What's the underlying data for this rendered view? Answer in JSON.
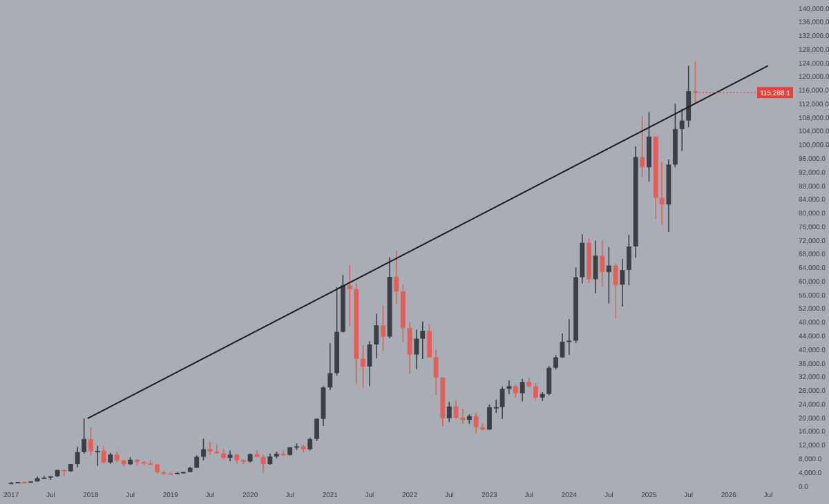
{
  "chart_data": {
    "type": "candlestick",
    "x": [
      "2017-01",
      "2017-02",
      "2017-03",
      "2017-04",
      "2017-05",
      "2017-06",
      "2017-07",
      "2017-08",
      "2017-09",
      "2017-10",
      "2017-11",
      "2017-12",
      "2018-01",
      "2018-02",
      "2018-03",
      "2018-04",
      "2018-05",
      "2018-06",
      "2018-07",
      "2018-08",
      "2018-09",
      "2018-10",
      "2018-11",
      "2018-12",
      "2019-01",
      "2019-02",
      "2019-03",
      "2019-04",
      "2019-05",
      "2019-06",
      "2019-07",
      "2019-08",
      "2019-09",
      "2019-10",
      "2019-11",
      "2019-12",
      "2020-01",
      "2020-02",
      "2020-03",
      "2020-04",
      "2020-05",
      "2020-06",
      "2020-07",
      "2020-08",
      "2020-09",
      "2020-10",
      "2020-11",
      "2020-12",
      "2021-01",
      "2021-02",
      "2021-03",
      "2021-04",
      "2021-05",
      "2021-06",
      "2021-07",
      "2021-08",
      "2021-09",
      "2021-10",
      "2021-11",
      "2021-12",
      "2022-01",
      "2022-02",
      "2022-03",
      "2022-04",
      "2022-05",
      "2022-06",
      "2022-07",
      "2022-08",
      "2022-09",
      "2022-10",
      "2022-11",
      "2022-12",
      "2023-01",
      "2023-02",
      "2023-03",
      "2023-04",
      "2023-05",
      "2023-06",
      "2023-07",
      "2023-08",
      "2023-09",
      "2023-10",
      "2023-11",
      "2023-12",
      "2024-01",
      "2024-02",
      "2024-03",
      "2024-04",
      "2024-05",
      "2024-06",
      "2024-07",
      "2024-08",
      "2024-09",
      "2024-10",
      "2024-11",
      "2024-12",
      "2025-01",
      "2025-02",
      "2025-03",
      "2025-04",
      "2025-05",
      "2025-06",
      "2025-07",
      "2025-08"
    ],
    "ohlc": [
      [
        963,
        1191,
        755,
        970
      ],
      [
        970,
        1200,
        920,
        1190
      ],
      [
        1190,
        1350,
        890,
        1080
      ],
      [
        1080,
        1350,
        1060,
        1350
      ],
      [
        1350,
        2760,
        1340,
        2300
      ],
      [
        2300,
        3000,
        2100,
        2480
      ],
      [
        2480,
        2900,
        1830,
        2870
      ],
      [
        2870,
        4750,
        2650,
        4700
      ],
      [
        4700,
        5000,
        2950,
        4340
      ],
      [
        4340,
        6470,
        4160,
        6470
      ],
      [
        6470,
        11500,
        5500,
        9950
      ],
      [
        9950,
        19800,
        9500,
        13800
      ],
      [
        13800,
        17200,
        9000,
        10200
      ],
      [
        10200,
        11800,
        5900,
        10300
      ],
      [
        10300,
        11700,
        6600,
        6900
      ],
      [
        6900,
        9750,
        6500,
        9240
      ],
      [
        9240,
        10000,
        7000,
        7500
      ],
      [
        7500,
        7750,
        5750,
        6400
      ],
      [
        6400,
        8500,
        6100,
        7730
      ],
      [
        7730,
        7750,
        5880,
        7030
      ],
      [
        7030,
        7400,
        6100,
        6630
      ],
      [
        6630,
        7680,
        6200,
        6370
      ],
      [
        6370,
        6600,
        3600,
        4040
      ],
      [
        4040,
        4300,
        3150,
        3740
      ],
      [
        3740,
        4100,
        3400,
        3460
      ],
      [
        3460,
        4200,
        3400,
        3850
      ],
      [
        3850,
        4150,
        3700,
        4100
      ],
      [
        4100,
        5600,
        4100,
        5350
      ],
      [
        5350,
        9000,
        5300,
        8570
      ],
      [
        8570,
        13900,
        7500,
        10800
      ],
      [
        10800,
        13200,
        9100,
        10100
      ],
      [
        10100,
        12300,
        9400,
        9600
      ],
      [
        9600,
        10900,
        7800,
        8300
      ],
      [
        8300,
        10400,
        7300,
        9200
      ],
      [
        9200,
        9500,
        6500,
        7570
      ],
      [
        7570,
        7750,
        6400,
        7200
      ],
      [
        7200,
        9550,
        6900,
        9350
      ],
      [
        9350,
        10500,
        8450,
        8550
      ],
      [
        8550,
        9200,
        3850,
        6440
      ],
      [
        6440,
        9500,
        6200,
        8650
      ],
      [
        8650,
        10100,
        8100,
        9450
      ],
      [
        9450,
        10400,
        8900,
        9140
      ],
      [
        9140,
        11450,
        8900,
        11350
      ],
      [
        11350,
        12500,
        10600,
        11650
      ],
      [
        11650,
        12100,
        9900,
        10780
      ],
      [
        10780,
        14100,
        10400,
        13800
      ],
      [
        13800,
        19900,
        13200,
        19700
      ],
      [
        19700,
        29300,
        17600,
        28900
      ],
      [
        28900,
        41900,
        28100,
        33100
      ],
      [
        33100,
        58300,
        32400,
        45200
      ],
      [
        45200,
        61800,
        45000,
        58800
      ],
      [
        58800,
        64800,
        47000,
        57700
      ],
      [
        57700,
        59500,
        30000,
        37300
      ],
      [
        37300,
        41300,
        28800,
        35000
      ],
      [
        35000,
        42500,
        29300,
        41500
      ],
      [
        41500,
        50500,
        37400,
        47100
      ],
      [
        47100,
        52900,
        39600,
        43800
      ],
      [
        43800,
        67000,
        43300,
        61300
      ],
      [
        61300,
        69000,
        53300,
        57000
      ],
      [
        57000,
        59100,
        42000,
        46300
      ],
      [
        46300,
        48000,
        32900,
        38500
      ],
      [
        38500,
        45800,
        34300,
        43200
      ],
      [
        43200,
        48200,
        37200,
        45500
      ],
      [
        45500,
        47400,
        37700,
        37700
      ],
      [
        37700,
        40000,
        26700,
        31800
      ],
      [
        31800,
        31900,
        17600,
        19900
      ],
      [
        19900,
        24700,
        18800,
        23300
      ],
      [
        23300,
        25200,
        19600,
        20050
      ],
      [
        20050,
        22700,
        18200,
        19400
      ],
      [
        19400,
        21000,
        18200,
        20500
      ],
      [
        20500,
        21500,
        15500,
        17200
      ],
      [
        17200,
        18400,
        16300,
        16550
      ],
      [
        16550,
        23900,
        16500,
        23100
      ],
      [
        23100,
        25300,
        21400,
        23150
      ],
      [
        23150,
        29200,
        19600,
        28500
      ],
      [
        28500,
        31000,
        26900,
        29250
      ],
      [
        29250,
        29800,
        25800,
        27200
      ],
      [
        27200,
        31400,
        24800,
        30500
      ],
      [
        30500,
        31800,
        28900,
        29250
      ],
      [
        29250,
        30200,
        25200,
        25950
      ],
      [
        25950,
        27500,
        24900,
        26970
      ],
      [
        26970,
        35200,
        26600,
        34650
      ],
      [
        34650,
        38400,
        34100,
        37700
      ],
      [
        37700,
        44700,
        37600,
        42300
      ],
      [
        42300,
        48900,
        38500,
        42600
      ],
      [
        42600,
        64000,
        41900,
        61200
      ],
      [
        61200,
        73800,
        59300,
        71300
      ],
      [
        71300,
        72700,
        59600,
        60600
      ],
      [
        60600,
        71900,
        56500,
        67500
      ],
      [
        67500,
        72000,
        58400,
        62700
      ],
      [
        62700,
        70000,
        53500,
        64600
      ],
      [
        64600,
        65100,
        49100,
        59000
      ],
      [
        59000,
        66500,
        52600,
        63300
      ],
      [
        63300,
        73600,
        58900,
        70200
      ],
      [
        70200,
        99600,
        66800,
        96400
      ],
      [
        96400,
        108300,
        90500,
        93400
      ],
      [
        93400,
        109600,
        89200,
        102400
      ],
      [
        102400,
        102500,
        78200,
        84400
      ],
      [
        84400,
        95000,
        76600,
        82500
      ],
      [
        82500,
        95700,
        74400,
        94200
      ],
      [
        94200,
        112000,
        93400,
        104600
      ],
      [
        104600,
        110500,
        98200,
        107100
      ],
      [
        107100,
        123200,
        105100,
        115700
      ],
      [
        115700,
        124400,
        111900,
        115288.1
      ]
    ],
    "colors": [
      "#3b3f47",
      "#3b3f47",
      "#e0605a",
      "#3b3f47",
      "#3b3f47",
      "#3b3f47",
      "#3b3f47",
      "#3b3f47",
      "#e0605a",
      "#3b3f47",
      "#3b3f47",
      "#3b3f47",
      "#e0605a",
      "#3b3f47",
      "#e0605a",
      "#3b3f47",
      "#e0605a",
      "#e0605a",
      "#3b3f47",
      "#e0605a",
      "#e0605a",
      "#e0605a",
      "#e0605a",
      "#e0605a",
      "#e0605a",
      "#3b3f47",
      "#3b3f47",
      "#3b3f47",
      "#3b3f47",
      "#3b3f47",
      "#e0605a",
      "#e0605a",
      "#e0605a",
      "#3b3f47",
      "#e0605a",
      "#e0605a",
      "#3b3f47",
      "#e0605a",
      "#e0605a",
      "#3b3f47",
      "#3b3f47",
      "#e0605a",
      "#3b3f47",
      "#3b3f47",
      "#e0605a",
      "#3b3f47",
      "#3b3f47",
      "#3b3f47",
      "#3b3f47",
      "#3b3f47",
      "#3b3f47",
      "#e0605a",
      "#e0605a",
      "#e0605a",
      "#3b3f47",
      "#3b3f47",
      "#e0605a",
      "#3b3f47",
      "#e0605a",
      "#e0605a",
      "#e0605a",
      "#3b3f47",
      "#3b3f47",
      "#e0605a",
      "#e0605a",
      "#e0605a",
      "#3b3f47",
      "#e0605a",
      "#e0605a",
      "#3b3f47",
      "#e0605a",
      "#e0605a",
      "#3b3f47",
      "#3b3f47",
      "#3b3f47",
      "#3b3f47",
      "#e0605a",
      "#3b3f47",
      "#e0605a",
      "#e0605a",
      "#3b3f47",
      "#3b3f47",
      "#3b3f47",
      "#3b3f47",
      "#3b3f47",
      "#3b3f47",
      "#3b3f47",
      "#e0605a",
      "#3b3f47",
      "#e0605a",
      "#3b3f47",
      "#e0605a",
      "#3b3f47",
      "#3b3f47",
      "#3b3f47",
      "#e0605a",
      "#3b3f47",
      "#e0605a",
      "#e0605a",
      "#3b3f47",
      "#3b3f47",
      "#3b3f47",
      "#3b3f47",
      "#e0605a"
    ],
    "series": [
      {
        "type": "line",
        "x": [
          "2017-12-17",
          "2026-07-01"
        ],
        "values": [
          19800,
          123200
        ],
        "color": "#1c1c1c"
      }
    ],
    "xlim": [
      "2016-11-11",
      "2026-07-01"
    ],
    "xticks": [
      {
        "value": "2017-01-01",
        "label": "2017"
      },
      {
        "value": "2017-07-01",
        "label": "Jul"
      },
      {
        "value": "2018-01-01",
        "label": "2018"
      },
      {
        "value": "2018-07-01",
        "label": "Jul"
      },
      {
        "value": "2019-01-01",
        "label": "2019"
      },
      {
        "value": "2019-07-01",
        "label": "Jul"
      },
      {
        "value": "2020-01-01",
        "label": "2020"
      },
      {
        "value": "2020-07-01",
        "label": "Jul"
      },
      {
        "value": "2021-01-01",
        "label": "2021"
      },
      {
        "value": "2021-07-01",
        "label": "Jul"
      },
      {
        "value": "2022-01-01",
        "label": "2022"
      },
      {
        "value": "2022-07-01",
        "label": "Jul"
      },
      {
        "value": "2023-01-01",
        "label": "2023"
      },
      {
        "value": "2023-07-01",
        "label": "Jul"
      },
      {
        "value": "2024-01-01",
        "label": "2024"
      },
      {
        "value": "2024-07-01",
        "label": "Jul"
      },
      {
        "value": "2025-01-01",
        "label": "2025"
      },
      {
        "value": "2025-07-01",
        "label": "Jul"
      },
      {
        "value": "2026-01-01",
        "label": "2026"
      },
      {
        "value": "2026-07-01",
        "label": "Jul"
      }
    ],
    "ylim": [
      0,
      140000
    ],
    "yticks": [
      {
        "value": 0,
        "label": "0.0"
      },
      {
        "value": 4000,
        "label": "4,000.0"
      },
      {
        "value": 8000,
        "label": "8,000.0"
      },
      {
        "value": 12000,
        "label": "12,000.0"
      },
      {
        "value": 16000,
        "label": "16,000.0"
      },
      {
        "value": 20000,
        "label": "20,000.0"
      },
      {
        "value": 24000,
        "label": "24,000.0"
      },
      {
        "value": 28000,
        "label": "28,000.0"
      },
      {
        "value": 32000,
        "label": "32,000.0"
      },
      {
        "value": 36000,
        "label": "36,000.0"
      },
      {
        "value": 40000,
        "label": "40,000.0"
      },
      {
        "value": 44000,
        "label": "44,000.0"
      },
      {
        "value": 48000,
        "label": "48,000.0"
      },
      {
        "value": 52000,
        "label": "52,000.0"
      },
      {
        "value": 56000,
        "label": "56,000.0"
      },
      {
        "value": 60000,
        "label": "60,000.0"
      },
      {
        "value": 64000,
        "label": "64,000.0"
      },
      {
        "value": 68000,
        "label": "68,000.0"
      },
      {
        "value": 72000,
        "label": "72,000.0"
      },
      {
        "value": 76000,
        "label": "76,000.0"
      },
      {
        "value": 80000,
        "label": "80,000.0"
      },
      {
        "value": 84000,
        "label": "84,000.0"
      },
      {
        "value": 88000,
        "label": "88,000.0"
      },
      {
        "value": 92000,
        "label": "92,000.0"
      },
      {
        "value": 96000,
        "label": "96,000.0"
      },
      {
        "value": 100000,
        "label": "100,000.0"
      },
      {
        "value": 104000,
        "label": "104,000.0"
      },
      {
        "value": 108000,
        "label": "108,000.0"
      },
      {
        "value": 112000,
        "label": "112,000.0"
      },
      {
        "value": 116000,
        "label": "116,000.0"
      },
      {
        "value": 120000,
        "label": "120,000.0"
      },
      {
        "value": 124000,
        "label": "124,000.0"
      },
      {
        "value": 128000,
        "label": "128,000.0"
      },
      {
        "value": 132000,
        "label": "132,000.0"
      },
      {
        "value": 136000,
        "label": "136,000.0"
      },
      {
        "value": 140000,
        "label": "140,000.0"
      }
    ],
    "annotations": [
      {
        "text": "115,288.1",
        "x": "2025-08",
        "y": 115288.1
      }
    ]
  }
}
